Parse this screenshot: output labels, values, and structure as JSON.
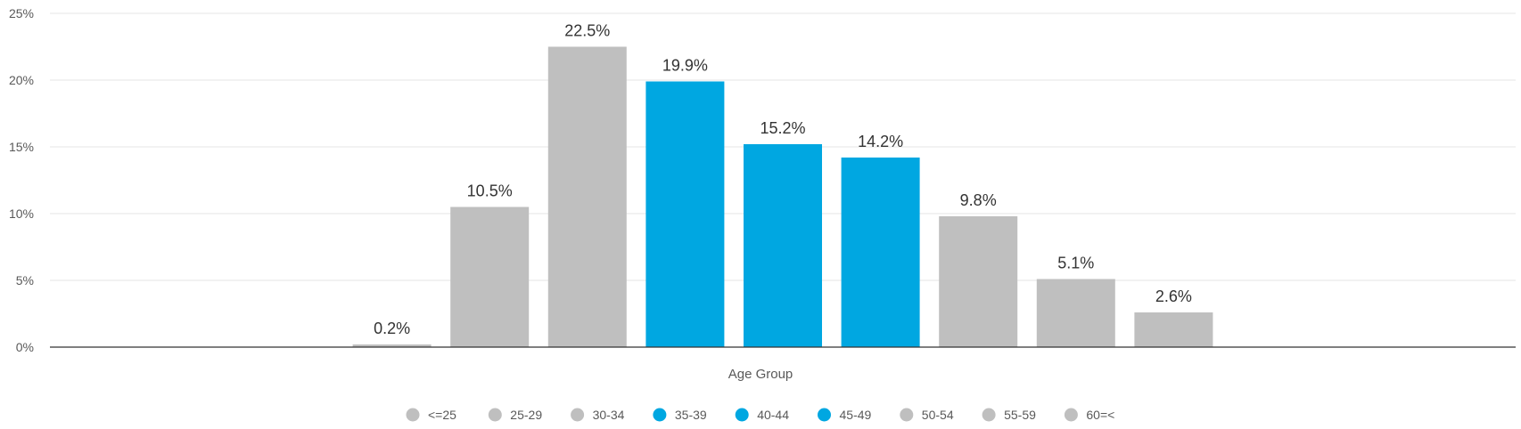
{
  "chart_data": {
    "type": "bar",
    "title": "",
    "xlabel": "Age Group",
    "ylabel": "",
    "ylim": [
      0,
      25
    ],
    "yticks": [
      "0%",
      "5%",
      "10%",
      "15%",
      "20%",
      "25%"
    ],
    "categories": [
      "<=25",
      "25-29",
      "30-34",
      "35-39",
      "40-44",
      "45-49",
      "50-54",
      "55-59",
      "60=<"
    ],
    "values": [
      0.2,
      10.5,
      22.5,
      19.9,
      15.2,
      14.2,
      9.8,
      5.1,
      2.6
    ],
    "data_labels": [
      "0.2%",
      "10.5%",
      "22.5%",
      "19.9%",
      "15.2%",
      "14.2%",
      "9.8%",
      "5.1%",
      "2.6%"
    ],
    "colors": [
      "#bfbfbf",
      "#bfbfbf",
      "#bfbfbf",
      "#00a7e1",
      "#00a7e1",
      "#00a7e1",
      "#bfbfbf",
      "#bfbfbf",
      "#bfbfbf"
    ],
    "grid": true,
    "legend_position": "bottom-center"
  }
}
